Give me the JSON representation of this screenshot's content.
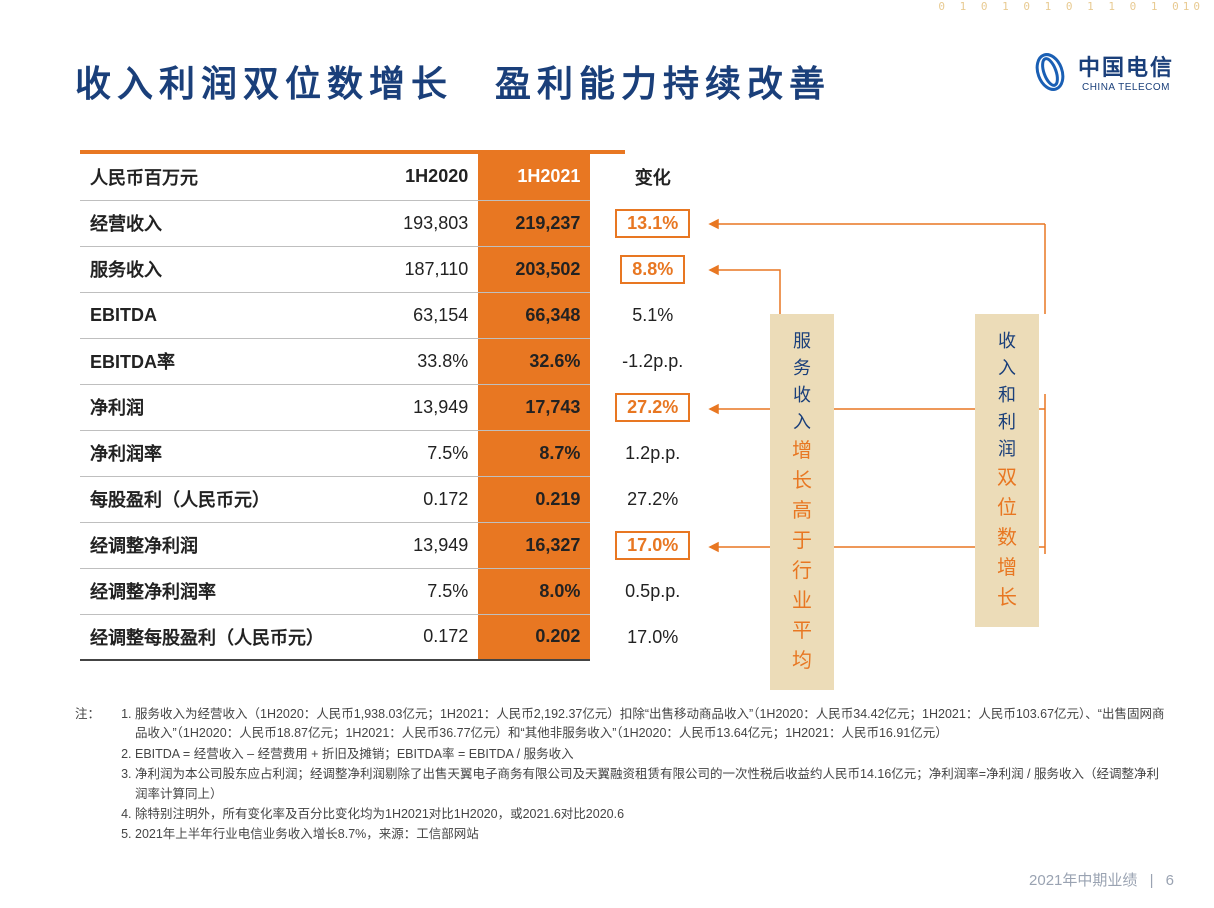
{
  "deco": "0 1 0 1 0 1  0 1 1 0 1 010",
  "title": "收入利润双位数增长　盈利能力持续改善",
  "logo": {
    "cn": "中国电信",
    "en": "CHINA TELECOM"
  },
  "table": {
    "colors": {
      "accent": "#e87722",
      "navy": "#1a3f7a",
      "border": "#bfbfbf",
      "callout_bg": "#ecdcb8"
    },
    "headers": {
      "label": "人民币百万元",
      "c2020": "1H2020",
      "c2021": "1H2021",
      "change": "变化"
    },
    "rows": [
      {
        "label": "经营收入",
        "v2020": "193,803",
        "v2021": "219,237",
        "chg": "13.1%",
        "boxed": true
      },
      {
        "label": "服务收入",
        "v2020": "187,110",
        "v2021": "203,502",
        "chg": "8.8%",
        "boxed": true
      },
      {
        "label": "EBITDA",
        "v2020": "63,154",
        "v2021": "66,348",
        "chg": "5.1%",
        "boxed": false
      },
      {
        "label": "EBITDA率",
        "v2020": "33.8%",
        "v2021": "32.6%",
        "chg": "-1.2p.p.",
        "boxed": false
      },
      {
        "label": "净利润",
        "v2020": "13,949",
        "v2021": "17,743",
        "chg": "27.2%",
        "boxed": true
      },
      {
        "label": "净利润率",
        "v2020": "7.5%",
        "v2021": "8.7%",
        "chg": "1.2p.p.",
        "boxed": false
      },
      {
        "label": "每股盈利（人民币元）",
        "v2020": "0.172",
        "v2021": "0.219",
        "chg": "27.2%",
        "boxed": false
      },
      {
        "label": "经调整净利润",
        "v2020": "13,949",
        "v2021": "16,327",
        "chg": "17.0%",
        "boxed": true
      },
      {
        "label": "经调整净利润率",
        "v2020": "7.5%",
        "v2021": "8.0%",
        "chg": "0.5p.p.",
        "boxed": false
      },
      {
        "label": "经调整每股盈利（人民币元）",
        "v2020": "0.172",
        "v2021": "0.202",
        "chg": "17.0%",
        "boxed": false
      }
    ]
  },
  "callouts": {
    "box1": {
      "line1": "服务收入",
      "line2": "增长高于",
      "line3": "行业平均"
    },
    "box2": {
      "line1": "收入和利润",
      "line2": "双位数增长"
    }
  },
  "notes_label": "注：",
  "notes": [
    "服务收入为经营收入（1H2020：人民币1,938.03亿元；1H2021：人民币2,192.37亿元）扣除“出售移动商品收入”（1H2020：人民币34.42亿元；1H2021：人民币103.67亿元）、“出售固网商品收入”（1H2020：人民币18.87亿元；1H2021：人民币36.77亿元）和“其他非服务收入”（1H2020：人民币13.64亿元；1H2021：人民币16.91亿元）",
    "EBITDA = 经营收入 – 经营费用 + 折旧及摊销；EBITDA率 = EBITDA / 服务收入",
    "净利润为本公司股东应占利润；经调整净利润剔除了出售天翼电子商务有限公司及天翼融资租赁有限公司的一次性税后收益约人民币14.16亿元；净利润率=净利润 / 服务收入（经调整净利润率计算同上）",
    "除特别注明外，所有变化率及百分比变化均为1H2021对比1H2020，或2021.6对比2020.6",
    "2021年上半年行业电信业务收入增长8.7%，来源：工信部网站"
  ],
  "footer": {
    "text": "2021年中期业绩",
    "page": "6"
  }
}
